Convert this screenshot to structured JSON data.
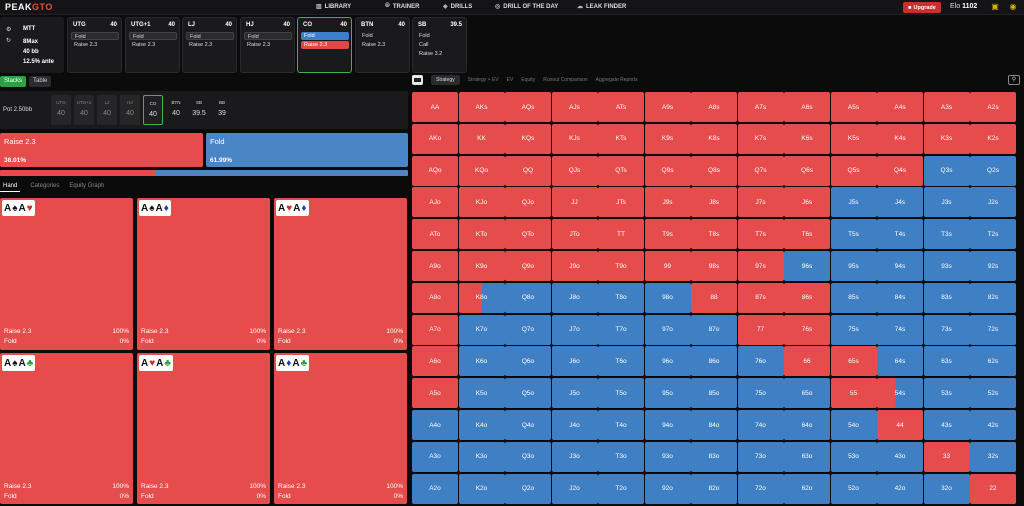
{
  "brand": {
    "part1": "PEAK",
    "part2": "GTO"
  },
  "nav": [
    {
      "label": "LIBRARY",
      "icon": "library-icon",
      "glyph": "▥"
    },
    {
      "label": "TRAINER",
      "icon": "trainer-icon",
      "glyph": "⦾"
    },
    {
      "label": "DRILLS",
      "icon": "drills-icon",
      "glyph": "◈"
    },
    {
      "label": "DRILL OF THE DAY",
      "icon": "drill-of-day-icon",
      "glyph": "◎"
    },
    {
      "label": "LEAK FINDER",
      "icon": "leak-finder-icon",
      "glyph": "☁"
    }
  ],
  "upgrade_label": "Upgrade",
  "elo": {
    "label": "Elo",
    "value": "1102"
  },
  "game": {
    "type": "MTT",
    "seats": "8Max",
    "stack": "40 bb",
    "ante": "12.5% ante"
  },
  "seats": [
    {
      "name": "UTG",
      "stack": "40",
      "actions": [
        {
          "text": "Fold",
          "kind": "fold"
        },
        {
          "text": "Raise 2.3",
          "kind": "plain"
        }
      ]
    },
    {
      "name": "UTG+1",
      "stack": "40",
      "actions": [
        {
          "text": "Fold",
          "kind": "fold"
        },
        {
          "text": "Raise 2.3",
          "kind": "plain"
        }
      ]
    },
    {
      "name": "LJ",
      "stack": "40",
      "actions": [
        {
          "text": "Fold",
          "kind": "fold"
        },
        {
          "text": "Raise 2.3",
          "kind": "plain"
        }
      ]
    },
    {
      "name": "HJ",
      "stack": "40",
      "actions": [
        {
          "text": "Fold",
          "kind": "fold"
        },
        {
          "text": "Raise 2.3",
          "kind": "plain"
        }
      ]
    },
    {
      "name": "CO",
      "stack": "40",
      "active": true,
      "actions": [
        {
          "text": "Fold",
          "kind": "foldsel"
        },
        {
          "text": "Raise 2.3",
          "kind": "raisesel"
        }
      ]
    },
    {
      "name": "BTN",
      "stack": "40",
      "actions": [
        {
          "text": "Fold",
          "kind": "plain"
        },
        {
          "text": "Raise 2.3",
          "kind": "plain"
        }
      ]
    },
    {
      "name": "SB",
      "stack": "39.5",
      "actions": [
        {
          "text": "Fold",
          "kind": "plain"
        },
        {
          "text": "Call",
          "kind": "plain"
        },
        {
          "text": "Raise 3.2",
          "kind": "plain"
        }
      ]
    }
  ],
  "view_tabs": [
    "Stacks",
    "Table"
  ],
  "pot": "Pot  2.50bb",
  "positions": [
    {
      "p": "UTG",
      "v": "40",
      "state": "dim"
    },
    {
      "p": "UTG+1",
      "v": "40",
      "state": "dim"
    },
    {
      "p": "LJ",
      "v": "40",
      "state": "dim"
    },
    {
      "p": "HJ",
      "v": "40",
      "state": "dim"
    },
    {
      "p": "CO",
      "v": "40",
      "state": "cur"
    },
    {
      "p": "BTN",
      "v": "40",
      "state": "live"
    },
    {
      "p": "SB",
      "v": "39.5",
      "state": "live"
    },
    {
      "p": "BB",
      "v": "39",
      "state": "live"
    }
  ],
  "actions_summary": {
    "raise_label": "Raise 2.3",
    "raise_pct": "38.01%",
    "fold_label": "Fold",
    "fold_pct": "61.99%",
    "raise_fraction": 0.3801
  },
  "left_tabs": [
    "Hand",
    "Categories",
    "Equity Graph"
  ],
  "combos": [
    {
      "cards": [
        {
          "r": "A",
          "s": "♠",
          "c": ""
        },
        {
          "r": "A",
          "s": "♥",
          "c": "red"
        }
      ],
      "raise": "Raise 2.3",
      "raise_pct": "100%",
      "fold": "Fold",
      "fold_pct": "0%"
    },
    {
      "cards": [
        {
          "r": "A",
          "s": "♠",
          "c": ""
        },
        {
          "r": "A",
          "s": "♦",
          "c": "blue"
        }
      ],
      "raise": "Raise 2.3",
      "raise_pct": "100%",
      "fold": "Fold",
      "fold_pct": "0%"
    },
    {
      "cards": [
        {
          "r": "A",
          "s": "♥",
          "c": "red"
        },
        {
          "r": "A",
          "s": "♦",
          "c": "blue"
        }
      ],
      "raise": "Raise 2.3",
      "raise_pct": "100%",
      "fold": "Fold",
      "fold_pct": "0%"
    },
    {
      "cards": [
        {
          "r": "A",
          "s": "♠",
          "c": ""
        },
        {
          "r": "A",
          "s": "♣",
          "c": "grn"
        }
      ],
      "raise": "Raise 2.3",
      "raise_pct": "100%",
      "fold": "Fold",
      "fold_pct": "0%"
    },
    {
      "cards": [
        {
          "r": "A",
          "s": "♥",
          "c": "red"
        },
        {
          "r": "A",
          "s": "♣",
          "c": "grn"
        }
      ],
      "raise": "Raise 2.3",
      "raise_pct": "100%",
      "fold": "Fold",
      "fold_pct": "0%"
    },
    {
      "cards": [
        {
          "r": "A",
          "s": "♦",
          "c": "blue"
        },
        {
          "r": "A",
          "s": "♣",
          "c": "grn"
        }
      ],
      "raise": "Raise 2.3",
      "raise_pct": "100%",
      "fold": "Fold",
      "fold_pct": "0%"
    }
  ],
  "right_tabs": [
    "Strategy",
    "Strategy + EV",
    "EV",
    "Equity",
    "Runout Comparison",
    "Aggregate Reports"
  ],
  "matrix": {
    "ranks": [
      "A",
      "K",
      "Q",
      "J",
      "T",
      "9",
      "8",
      "7",
      "6",
      "5",
      "4",
      "3",
      "2"
    ],
    "raise_freq": [
      [
        1,
        1,
        1,
        1,
        1,
        1,
        1,
        1,
        1,
        1,
        1,
        1,
        1
      ],
      [
        1,
        1,
        1,
        1,
        1,
        1,
        1,
        1,
        1,
        1,
        1,
        1,
        1
      ],
      [
        1,
        1,
        1,
        1,
        1,
        1,
        1,
        1,
        1,
        1,
        1,
        0,
        0
      ],
      [
        1,
        1,
        1,
        1,
        1,
        1,
        1,
        1,
        1,
        0,
        0,
        0,
        0
      ],
      [
        1,
        1,
        1,
        1,
        1,
        1,
        1,
        1,
        1,
        0,
        0,
        0,
        0
      ],
      [
        1,
        1,
        1,
        1,
        1,
        1,
        1,
        1,
        0,
        0,
        0,
        0,
        0
      ],
      [
        1,
        0.5,
        0,
        0,
        0,
        0,
        1,
        1,
        1,
        0,
        0,
        0,
        0
      ],
      [
        1,
        0,
        0,
        0,
        0,
        0,
        0,
        1,
        1,
        0,
        0,
        0,
        0
      ],
      [
        1,
        0,
        0,
        0,
        0,
        0,
        0,
        0,
        1,
        1,
        0,
        0,
        0
      ],
      [
        1,
        0,
        0,
        0,
        0,
        0,
        0,
        0,
        0,
        1,
        0.4,
        0,
        0
      ],
      [
        0,
        0,
        0,
        0,
        0,
        0,
        0,
        0,
        0,
        0,
        1,
        0,
        0
      ],
      [
        0,
        0,
        0,
        0,
        0,
        0,
        0,
        0,
        0,
        0,
        0,
        1,
        0
      ],
      [
        0,
        0,
        0,
        0,
        0,
        0,
        0,
        0,
        0,
        0,
        0,
        0,
        1
      ]
    ]
  },
  "colors": {
    "raise": "#e74c4c",
    "fold": "#3f7fc4",
    "accent": "#2ea043"
  }
}
